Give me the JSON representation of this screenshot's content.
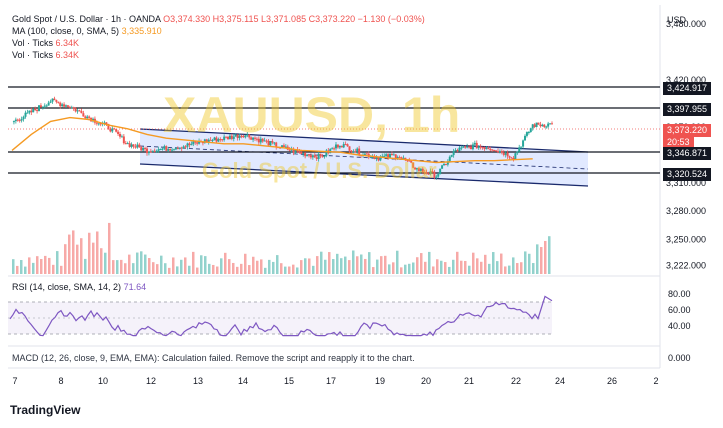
{
  "legend": {
    "symbol": "Gold Spot / U.S. Dollar · 1h · OANDA",
    "open": "O3,374.330",
    "high": "H3,375.115",
    "low": "L3,371.085",
    "close": "C3,373.220",
    "change": "−1.130 (−0.03%)",
    "ma_label": "MA (100, close, 0, SMA, 5)",
    "ma_value": "3,335.910",
    "vol1_label": "Vol · Ticks",
    "vol1_value": "6.34K",
    "vol2_label": "Vol · Ticks",
    "vol2_value": "6.34K",
    "rsi_label": "RSI (14, close, SMA, 14, 2)",
    "rsi_value": "71.64",
    "macd_label": "MACD (12, 26, close, 9, EMA, EMA): Calculation failed. Remove the script and reapply it to the chart."
  },
  "watermark": {
    "ticker": "XAUUSD, 1h",
    "name": "Gold Spot / U.S. Dollar"
  },
  "currency": "USD",
  "price_tags": {
    "r1": "3,424.917",
    "r2": "3,397.955",
    "current": "3,373.220",
    "countdown": "20:53",
    "s1": "3,346.871",
    "s2": "3,320.524"
  },
  "footer_brand": "TradingView",
  "colors": {
    "up": "#26a69a",
    "down": "#ef5350",
    "ma": "#f59a23",
    "rsi": "#7e57c2",
    "channel": "#2962ff",
    "watermark": "#f0c828"
  },
  "chart_data": {
    "type": "candlestick",
    "price_axis": {
      "ticks": [
        3480,
        3420,
        3370,
        3310,
        3280,
        3250,
        3222
      ],
      "tick_labels": [
        "3,480.000",
        "3,420.000",
        "3,370.000",
        "3,310.000",
        "3,280.000",
        "3,250.000",
        "3,222.000"
      ],
      "range": [
        3215,
        3495
      ]
    },
    "horizontal_levels": [
      3424.917,
      3397.955,
      3346.871,
      3320.524
    ],
    "x_axis": {
      "labels": [
        "7",
        "8",
        "10",
        "12",
        "13",
        "14",
        "15",
        "17",
        "19",
        "20",
        "21",
        "22",
        "24",
        "26",
        "2"
      ]
    },
    "close_series": [
      3375,
      3386,
      3398,
      3392,
      3380,
      3370,
      3352,
      3345,
      3347,
      3350,
      3355,
      3358,
      3362,
      3355,
      3348,
      3342,
      3338,
      3352,
      3343,
      3337,
      3340,
      3325,
      3318,
      3345,
      3350,
      3347,
      3338,
      3372,
      3373
    ],
    "ma_series": [
      3345,
      3362,
      3376,
      3380,
      3378,
      3372,
      3368,
      3362,
      3358,
      3356,
      3354,
      3352,
      3352,
      3350,
      3348,
      3345,
      3344,
      3343,
      3340,
      3338,
      3336,
      3334,
      3332,
      3333,
      3334,
      3334,
      3335,
      3336
    ],
    "rsi": {
      "axis_ticks": [
        80,
        60,
        40
      ],
      "tick_labels": [
        "80.00",
        "60.00",
        "40.00"
      ],
      "bands": [
        70,
        30
      ],
      "current": 71.64
    },
    "macd": {
      "tick_labels": [
        "0.000"
      ]
    }
  }
}
